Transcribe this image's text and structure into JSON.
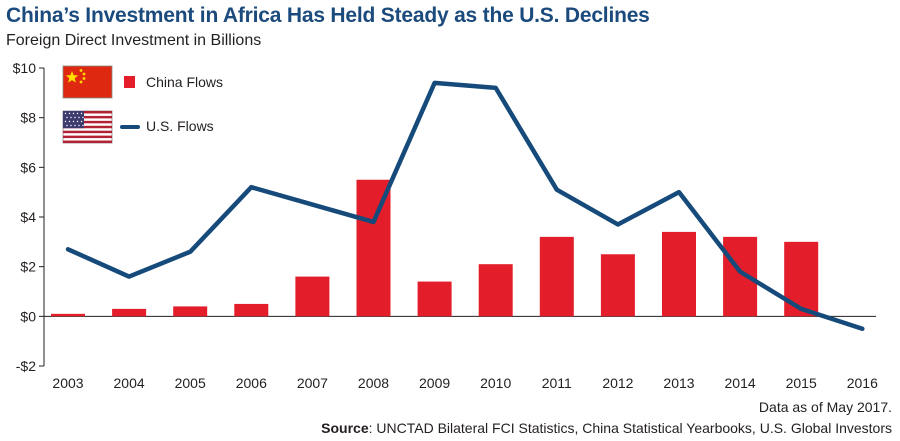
{
  "chart_data": {
    "type": "bar",
    "title": "China’s Investment in Africa Has Held Steady as the U.S. Declines",
    "subtitle": "Foreign Direct Investment in Billions",
    "categories": [
      "2003",
      "2004",
      "2005",
      "2006",
      "2007",
      "2008",
      "2009",
      "2010",
      "2011",
      "2012",
      "2013",
      "2014",
      "2015",
      "2016"
    ],
    "series": [
      {
        "name": "China Flows",
        "kind": "bar",
        "color": "#e31e2a",
        "values": [
          0.1,
          0.3,
          0.4,
          0.5,
          1.6,
          5.5,
          1.4,
          2.1,
          3.2,
          2.5,
          3.4,
          3.2,
          3.0,
          null
        ]
      },
      {
        "name": "U.S. Flows",
        "kind": "line",
        "color": "#154a7a",
        "values": [
          2.7,
          1.6,
          2.6,
          5.2,
          4.5,
          3.8,
          9.4,
          9.2,
          5.1,
          3.7,
          5.0,
          1.8,
          0.3,
          -0.5
        ]
      }
    ],
    "ylim": [
      -2,
      10
    ],
    "yticks": [
      {
        "value": -2,
        "label": "-$2"
      },
      {
        "value": 0,
        "label": "$0"
      },
      {
        "value": 2,
        "label": "$2"
      },
      {
        "value": 4,
        "label": "$4"
      },
      {
        "value": 6,
        "label": "$6"
      },
      {
        "value": 8,
        "label": "$8"
      },
      {
        "value": 10,
        "label": "$10"
      }
    ],
    "xlabel": "",
    "ylabel": "",
    "grid": false,
    "legend_position": "top-left",
    "legend_icons": [
      "china-flag-icon",
      "us-flag-icon"
    ]
  },
  "footer": {
    "note": "Data as of May 2017.",
    "source_label": "Source",
    "source_text": ": UNCTAD Bilateral FCI Statistics, China Statistical Yearbooks, U.S. Global Investors"
  }
}
